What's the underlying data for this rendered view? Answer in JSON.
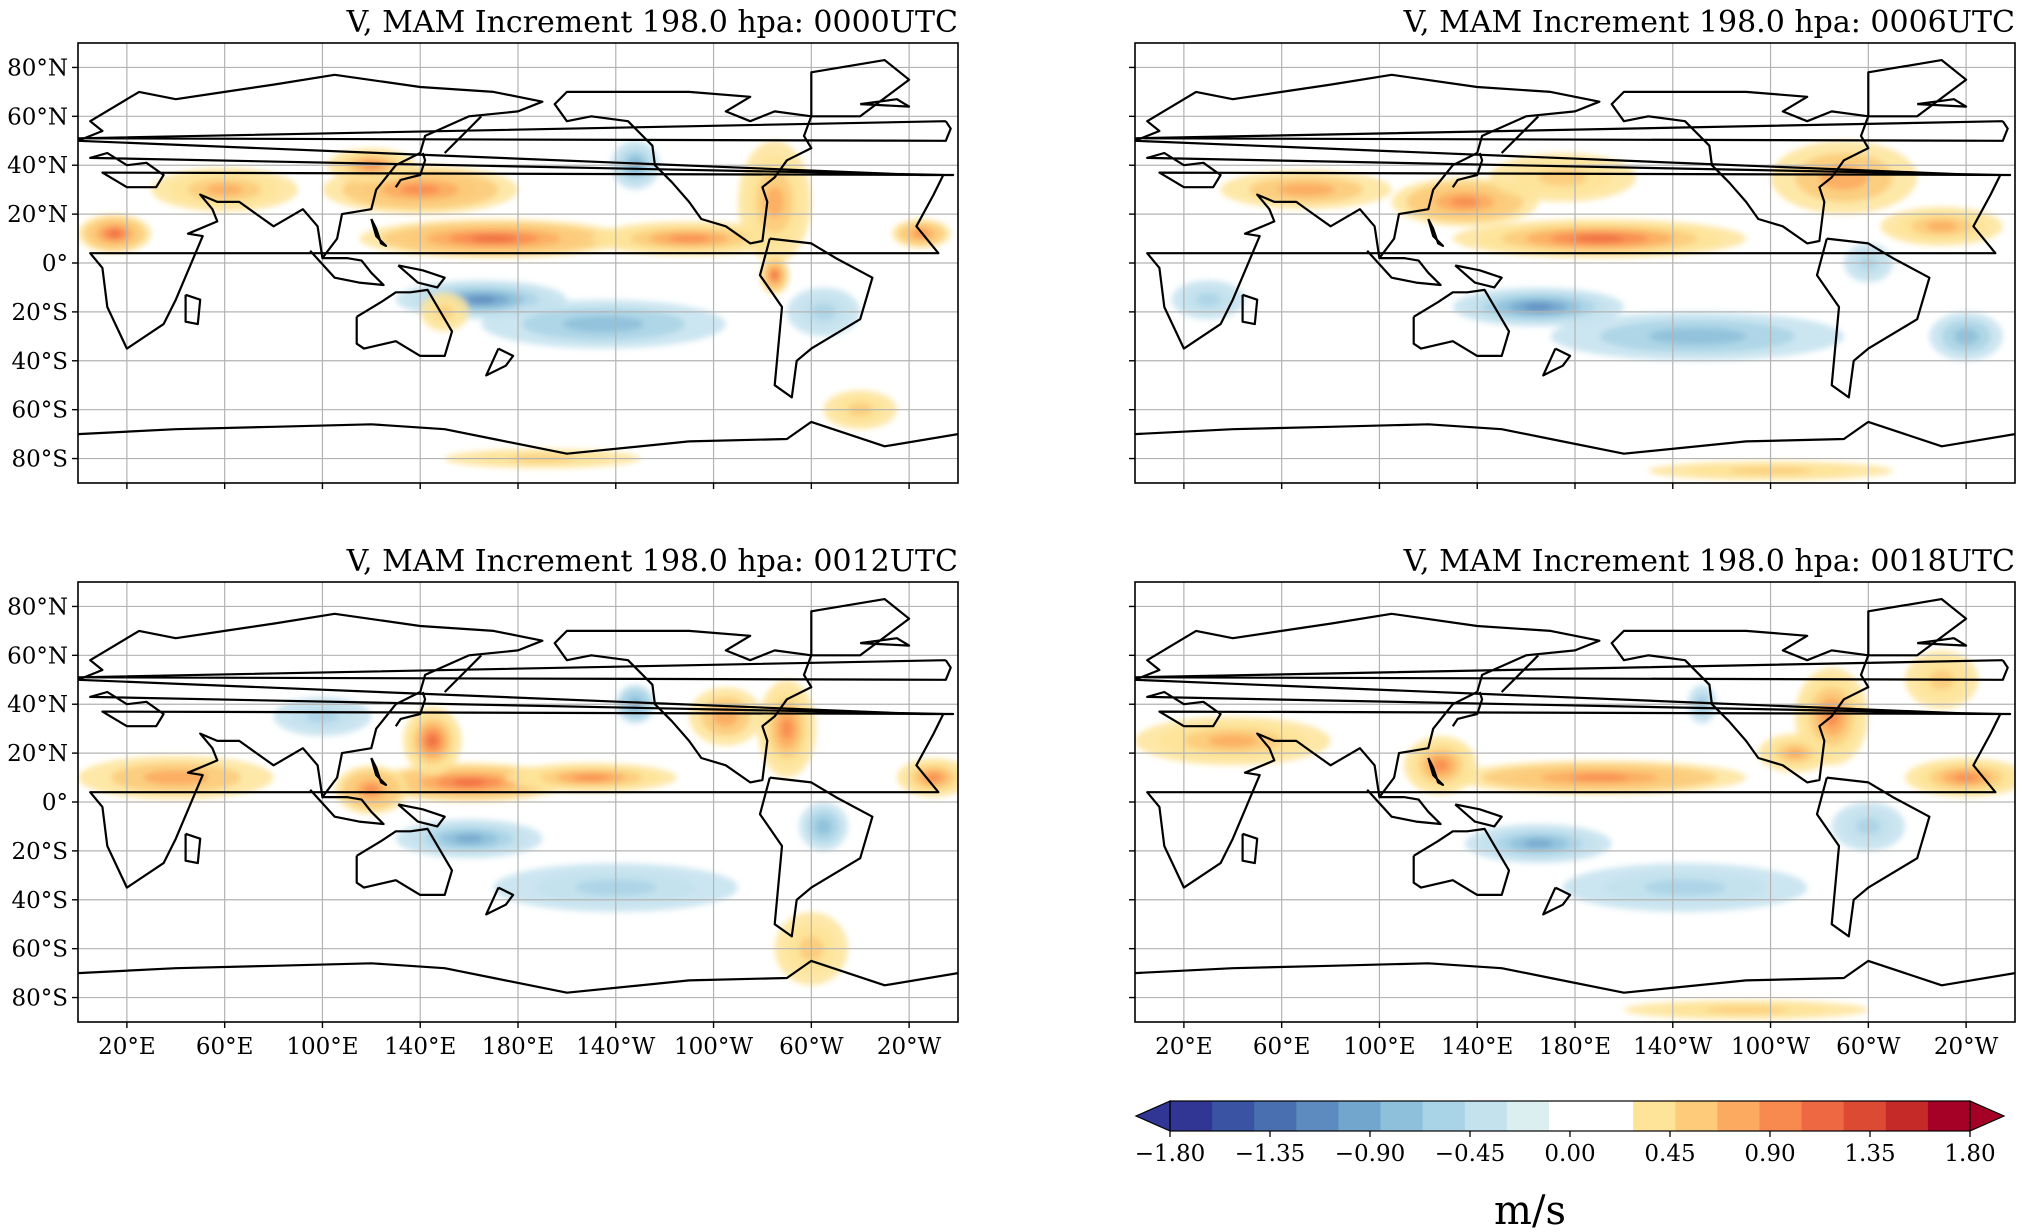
{
  "figure": {
    "panels": [
      {
        "title": "V, MAM Increment 198.0 hpa: 0000UTC",
        "show_lat_labels": true,
        "show_lon_labels": false
      },
      {
        "title": "V, MAM Increment 198.0 hpa: 0006UTC",
        "show_lat_labels": false,
        "show_lon_labels": false
      },
      {
        "title": "V, MAM Increment 198.0 hpa: 0012UTC",
        "show_lat_labels": true,
        "show_lon_labels": true
      },
      {
        "title": "V, MAM Increment 198.0 hpa: 0018UTC",
        "show_lat_labels": false,
        "show_lon_labels": true
      }
    ],
    "lat_labels": [
      "80°N",
      "60°N",
      "40°N",
      "20°N",
      "0°",
      "20°S",
      "40°S",
      "60°S",
      "80°S"
    ],
    "lat_values": [
      80,
      60,
      40,
      20,
      0,
      -20,
      -40,
      -60,
      -80
    ],
    "lon_labels": [
      "20°E",
      "60°E",
      "100°E",
      "140°E",
      "180°E",
      "140°W",
      "100°W",
      "60°W",
      "20°W"
    ],
    "lon_values": [
      20,
      60,
      100,
      140,
      180,
      220,
      260,
      300,
      340
    ],
    "lon_range": [
      0,
      360
    ],
    "lat_range": [
      -90,
      90
    ],
    "colorbar": {
      "ticks": [
        "−1.80",
        "−1.35",
        "−0.90",
        "−0.45",
        "0.00",
        "0.45",
        "0.90",
        "1.35",
        "1.80"
      ],
      "tick_values": [
        -1.8,
        -1.35,
        -0.9,
        -0.45,
        0,
        0.45,
        0.9,
        1.35,
        1.8
      ],
      "units": "m/s",
      "range": [
        -1.8,
        1.8
      ],
      "extend": "both",
      "colors": [
        "#313695",
        "#3a53a2",
        "#4a6fb0",
        "#5d8bbf",
        "#73a6cd",
        "#8ebfdb",
        "#a9d3e6",
        "#c3e2ee",
        "#dceff0",
        "#ffffff",
        "#ffffff",
        "#fee499",
        "#fdcb7a",
        "#fcaa5f",
        "#f88a4f",
        "#ee6841",
        "#dc4a34",
        "#c52a28",
        "#a50026"
      ]
    },
    "colormap": "RdYlBu_r"
  },
  "chart_data": {
    "type": "heatmap",
    "variable": "V",
    "units": "m/s",
    "colorbar_range": [
      -1.8,
      1.8
    ],
    "panels": [
      {
        "title": "V, MAM Increment 198.0 hpa: 0000UTC",
        "features": [
          {
            "lon": 170,
            "lat": 10,
            "value": 1.2,
            "slon": 55,
            "slat": 8
          },
          {
            "lon": 250,
            "lat": 10,
            "value": 0.9,
            "slon": 40,
            "slat": 7
          },
          {
            "lon": 140,
            "lat": 30,
            "value": 1.0,
            "slon": 40,
            "slat": 10
          },
          {
            "lon": 15,
            "lat": 12,
            "value": 1.2,
            "slon": 15,
            "slat": 8
          },
          {
            "lon": 60,
            "lat": 30,
            "value": 0.8,
            "slon": 30,
            "slat": 9
          },
          {
            "lon": 120,
            "lat": 40,
            "value": 0.9,
            "slon": 18,
            "slat": 7
          },
          {
            "lon": 285,
            "lat": 25,
            "value": 0.8,
            "slon": 15,
            "slat": 25
          },
          {
            "lon": 345,
            "lat": 12,
            "value": 1.0,
            "slon": 12,
            "slat": 6
          },
          {
            "lon": 285,
            "lat": -5,
            "value": 1.2,
            "slon": 6,
            "slat": 8
          },
          {
            "lon": 165,
            "lat": -15,
            "value": -1.1,
            "slon": 35,
            "slat": 8
          },
          {
            "lon": 215,
            "lat": -25,
            "value": -0.7,
            "slon": 50,
            "slat": 10
          },
          {
            "lon": 228,
            "lat": 40,
            "value": -0.9,
            "slon": 10,
            "slat": 10
          },
          {
            "lon": 305,
            "lat": -20,
            "value": -0.6,
            "slon": 15,
            "slat": 10
          },
          {
            "lon": 150,
            "lat": -20,
            "value": 0.5,
            "slon": 10,
            "slat": 8
          },
          {
            "lon": 190,
            "lat": -80,
            "value": 0.5,
            "slon": 40,
            "slat": 4
          },
          {
            "lon": 320,
            "lat": -60,
            "value": 0.5,
            "slon": 15,
            "slat": 8
          }
        ]
      },
      {
        "title": "V, MAM Increment 198.0 hpa: 0006UTC",
        "features": [
          {
            "lon": 190,
            "lat": 10,
            "value": 1.1,
            "slon": 60,
            "slat": 8
          },
          {
            "lon": 135,
            "lat": 25,
            "value": 1.0,
            "slon": 30,
            "slat": 10
          },
          {
            "lon": 70,
            "lat": 30,
            "value": 0.7,
            "slon": 35,
            "slat": 8
          },
          {
            "lon": 330,
            "lat": 15,
            "value": 0.8,
            "slon": 25,
            "slat": 8
          },
          {
            "lon": 290,
            "lat": 35,
            "value": 0.7,
            "slon": 30,
            "slat": 15
          },
          {
            "lon": 175,
            "lat": 35,
            "value": 0.6,
            "slon": 30,
            "slat": 10
          },
          {
            "lon": 165,
            "lat": -18,
            "value": -1.1,
            "slon": 35,
            "slat": 8
          },
          {
            "lon": 230,
            "lat": -30,
            "value": -0.7,
            "slon": 60,
            "slat": 10
          },
          {
            "lon": 30,
            "lat": -15,
            "value": -0.6,
            "slon": 15,
            "slat": 8
          },
          {
            "lon": 300,
            "lat": 0,
            "value": -0.6,
            "slon": 10,
            "slat": 8
          },
          {
            "lon": 340,
            "lat": -30,
            "value": -0.7,
            "slon": 15,
            "slat": 10
          },
          {
            "lon": 260,
            "lat": -85,
            "value": 0.6,
            "slon": 50,
            "slat": 4
          }
        ]
      },
      {
        "title": "V, MAM Increment 198.0 hpa: 0012UTC",
        "features": [
          {
            "lon": 160,
            "lat": 8,
            "value": 1.2,
            "slon": 40,
            "slat": 8
          },
          {
            "lon": 210,
            "lat": 10,
            "value": 0.9,
            "slon": 35,
            "slat": 6
          },
          {
            "lon": 145,
            "lat": 25,
            "value": 1.1,
            "slon": 12,
            "slat": 14
          },
          {
            "lon": 290,
            "lat": 30,
            "value": 0.9,
            "slon": 12,
            "slat": 20
          },
          {
            "lon": 120,
            "lat": 5,
            "value": 1.0,
            "slon": 15,
            "slat": 10
          },
          {
            "lon": 40,
            "lat": 10,
            "value": 0.7,
            "slon": 40,
            "slat": 9
          },
          {
            "lon": 350,
            "lat": 10,
            "value": 0.9,
            "slon": 15,
            "slat": 8
          },
          {
            "lon": 265,
            "lat": 35,
            "value": 0.7,
            "slon": 15,
            "slat": 12
          },
          {
            "lon": 228,
            "lat": 40,
            "value": -1.0,
            "slon": 8,
            "slat": 8
          },
          {
            "lon": 160,
            "lat": -15,
            "value": -0.9,
            "slon": 30,
            "slat": 8
          },
          {
            "lon": 220,
            "lat": -35,
            "value": -0.6,
            "slon": 50,
            "slat": 10
          },
          {
            "lon": 305,
            "lat": -10,
            "value": -0.7,
            "slon": 10,
            "slat": 10
          },
          {
            "lon": 100,
            "lat": 35,
            "value": -0.5,
            "slon": 20,
            "slat": 8
          },
          {
            "lon": 300,
            "lat": -60,
            "value": 0.6,
            "slon": 15,
            "slat": 15
          }
        ]
      },
      {
        "title": "V, MAM Increment 198.0 hpa: 0018UTC",
        "features": [
          {
            "lon": 190,
            "lat": 10,
            "value": 1.0,
            "slon": 60,
            "slat": 7
          },
          {
            "lon": 40,
            "lat": 25,
            "value": 0.8,
            "slon": 40,
            "slat": 10
          },
          {
            "lon": 340,
            "lat": 10,
            "value": 0.9,
            "slon": 25,
            "slat": 8
          },
          {
            "lon": 285,
            "lat": 35,
            "value": 0.9,
            "slon": 15,
            "slat": 20
          },
          {
            "lon": 125,
            "lat": 15,
            "value": 0.9,
            "slon": 15,
            "slat": 12
          },
          {
            "lon": 270,
            "lat": 20,
            "value": 0.8,
            "slon": 15,
            "slat": 8
          },
          {
            "lon": 330,
            "lat": 50,
            "value": 0.6,
            "slon": 15,
            "slat": 12
          },
          {
            "lon": 165,
            "lat": -17,
            "value": -0.9,
            "slon": 30,
            "slat": 8
          },
          {
            "lon": 225,
            "lat": -35,
            "value": -0.6,
            "slon": 50,
            "slat": 10
          },
          {
            "lon": 232,
            "lat": 40,
            "value": -0.8,
            "slon": 6,
            "slat": 8
          },
          {
            "lon": 300,
            "lat": -10,
            "value": -0.5,
            "slon": 15,
            "slat": 10
          },
          {
            "lon": 250,
            "lat": -85,
            "value": 0.5,
            "slon": 50,
            "slat": 4
          }
        ]
      }
    ]
  }
}
